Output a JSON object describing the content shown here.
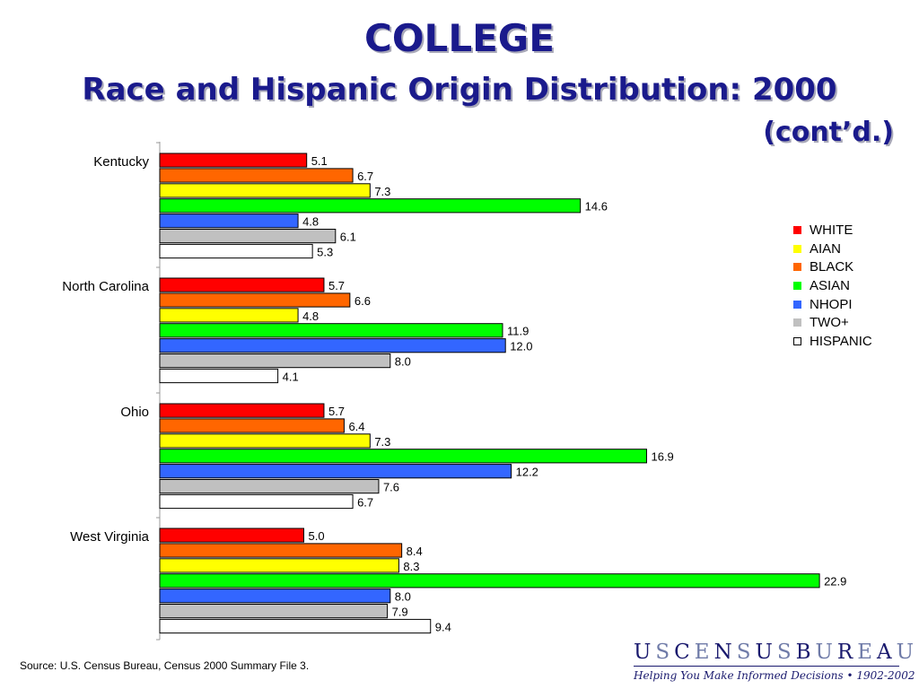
{
  "header": {
    "title": "COLLEGE",
    "subtitle": "Race and Hispanic Origin Distribution:  2000",
    "continued": "(cont’d.)"
  },
  "legend": [
    {
      "label": "WHITE",
      "color": "#ff0000"
    },
    {
      "label": "AIAN",
      "color": "#ffff00"
    },
    {
      "label": "BLACK",
      "color": "#ff6600"
    },
    {
      "label": "ASIAN",
      "color": "#00ff00"
    },
    {
      "label": "NHOPI",
      "color": "#3366ff"
    },
    {
      "label": "TWO+",
      "color": "#c0c0c0"
    },
    {
      "label": "HISPANIC",
      "color": "#ffffff"
    }
  ],
  "footer": {
    "source": "Source:  U.S. Census Bureau, Census 2000 Summary File 3.",
    "logo_parts": [
      "U",
      "S",
      "C",
      "E",
      "N",
      "S",
      "U",
      "S",
      "B",
      "U",
      "R",
      "E",
      "A",
      "U"
    ],
    "logo_tagline": "Helping You Make Informed Decisions • 1902-2002"
  },
  "chart_data": {
    "type": "bar",
    "orientation": "horizontal",
    "title": "COLLEGE",
    "subtitle": "Race and Hispanic Origin Distribution:  2000",
    "categories": [
      "Kentucky",
      "North Carolina",
      "Ohio",
      "West Virginia"
    ],
    "series": [
      {
        "name": "WHITE",
        "color": "#ff0000",
        "values": [
          5.1,
          5.7,
          5.7,
          5.0
        ]
      },
      {
        "name": "BLACK",
        "color": "#ff6600",
        "values": [
          6.7,
          6.6,
          6.4,
          8.4
        ]
      },
      {
        "name": "AIAN",
        "color": "#ffff00",
        "values": [
          7.3,
          4.8,
          7.3,
          8.3
        ]
      },
      {
        "name": "ASIAN",
        "color": "#00ff00",
        "values": [
          14.6,
          11.9,
          16.9,
          22.9
        ]
      },
      {
        "name": "NHOPI",
        "color": "#3366ff",
        "values": [
          4.8,
          12.0,
          12.2,
          8.0
        ]
      },
      {
        "name": "TWO+",
        "color": "#c0c0c0",
        "values": [
          6.1,
          8.0,
          7.6,
          7.9
        ]
      },
      {
        "name": "HISPANIC",
        "color": "#ffffff",
        "values": [
          5.3,
          4.1,
          6.7,
          9.4
        ]
      }
    ],
    "xlim": [
      0,
      23
    ],
    "data_labels": true,
    "legend_position": "right",
    "grid": false
  }
}
